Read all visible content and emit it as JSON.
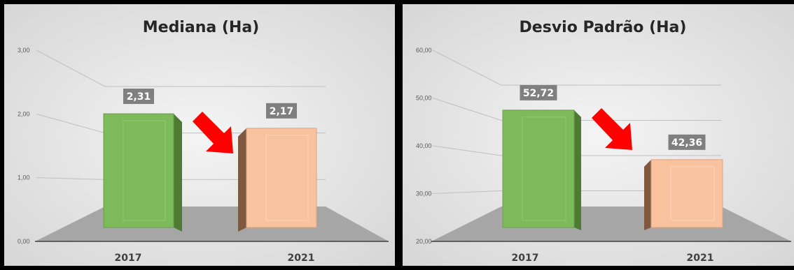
{
  "colors": {
    "panel_bg_center": "#f4f4f4",
    "panel_bg_edge": "#d6d6d6",
    "floor": "#a6a6a6",
    "bar_2017_front": "#7cba5a",
    "bar_2017_side": "#4e7a34",
    "bar_2021_front": "#f8c29f",
    "bar_2021_side": "#7f5840",
    "label_box": "#7f7f7f",
    "arrow": "#ff0000"
  },
  "chart_data": [
    {
      "type": "bar",
      "title": "Mediana (Ha)",
      "categories": [
        "2017",
        "2021"
      ],
      "values": [
        2.31,
        2.17
      ],
      "data_labels": [
        "2,31",
        "2,17"
      ],
      "ylim": [
        0,
        3
      ],
      "y_ticks": [
        "0,00",
        "1,00",
        "2,00",
        "3,00"
      ],
      "grid": true,
      "annotation": "red-arrow-down-right",
      "three_d": true
    },
    {
      "type": "bar",
      "title": "Desvio Padrão (Ha)",
      "categories": [
        "2017",
        "2021"
      ],
      "values": [
        52.72,
        42.36
      ],
      "data_labels": [
        "52,72",
        "42,36"
      ],
      "ylim": [
        20,
        60
      ],
      "y_ticks": [
        "20,00",
        "30,00",
        "40,00",
        "50,00",
        "60,00"
      ],
      "grid": true,
      "annotation": "red-arrow-down-right",
      "three_d": true
    }
  ]
}
